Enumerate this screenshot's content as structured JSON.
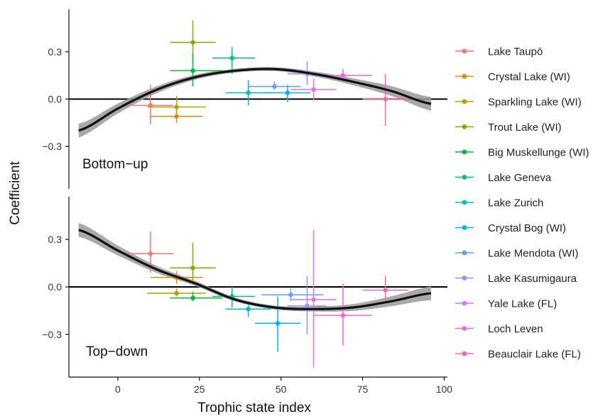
{
  "chart_data": {
    "type": "scatter",
    "xlabel": "Trophic state index",
    "ylabel": "Coefficient",
    "xlim": [
      -15,
      101
    ],
    "ylim": [
      -0.57,
      0.57
    ],
    "x_ticks": [
      0,
      25,
      50,
      75,
      100
    ],
    "x_tick_labels": [
      "0",
      "25",
      "50",
      "75",
      "100"
    ],
    "y_ticks": [
      -0.3,
      0.0,
      0.3
    ],
    "y_tick_labels": [
      "−0.3",
      "0.0",
      "0.3"
    ],
    "grid": false,
    "legend_position": "right",
    "legend": [
      {
        "name": "Lake Taupō",
        "color": "#F8766D"
      },
      {
        "name": "Crystal Lake (WI)",
        "color": "#DE8C00"
      },
      {
        "name": "Sparkling Lake (WI)",
        "color": "#B79F00"
      },
      {
        "name": "Trout Lake (WI)",
        "color": "#7CAE00"
      },
      {
        "name": "Big Muskellunge (WI)",
        "color": "#00BA38"
      },
      {
        "name": "Lake Geneva",
        "color": "#00C08B"
      },
      {
        "name": "Lake Zurich",
        "color": "#00BFC4"
      },
      {
        "name": "Crystal Bog (WI)",
        "color": "#00B4F0"
      },
      {
        "name": "Lake Mendota (WI)",
        "color": "#619CFF"
      },
      {
        "name": "Lake Kasumigaura",
        "color": "#9B8CFF"
      },
      {
        "name": "Yale Lake (FL)",
        "color": "#DB72FB"
      },
      {
        "name": "Loch Leven",
        "color": "#F564E3"
      },
      {
        "name": "Beauclair Lake (FL)",
        "color": "#FF64B0"
      }
    ],
    "panels": [
      {
        "label": "Bottom−up",
        "points": [
          {
            "lake": "Lake Taupō",
            "x": 10,
            "y": -0.04,
            "xmin": 3,
            "xmax": 17,
            "ymin": -0.16,
            "ymax": 0.09
          },
          {
            "lake": "Crystal Lake (WI)",
            "x": 18,
            "y": -0.11,
            "xmin": 10,
            "xmax": 26,
            "ymin": -0.15,
            "ymax": -0.06
          },
          {
            "lake": "Sparkling Lake (WI)",
            "x": 18,
            "y": -0.05,
            "xmin": 9,
            "xmax": 27,
            "ymin": -0.1,
            "ymax": 0.02
          },
          {
            "lake": "Trout Lake (WI)",
            "x": 23,
            "y": 0.36,
            "xmin": 16,
            "xmax": 30,
            "ymin": 0.25,
            "ymax": 0.5
          },
          {
            "lake": "Big Muskellunge (WI)",
            "x": 23,
            "y": 0.18,
            "xmin": 16,
            "xmax": 32,
            "ymin": 0.08,
            "ymax": 0.29
          },
          {
            "lake": "Lake Geneva",
            "x": 35,
            "y": 0.26,
            "xmin": 29,
            "xmax": 42,
            "ymin": 0.16,
            "ymax": 0.33
          },
          {
            "lake": "Lake Zurich",
            "x": 40,
            "y": 0.04,
            "xmin": 33,
            "xmax": 47,
            "ymin": -0.04,
            "ymax": 0.12
          },
          {
            "lake": "Crystal Bog (WI)",
            "x": 52,
            "y": 0.04,
            "xmin": 45,
            "xmax": 59,
            "ymin": -0.02,
            "ymax": 0.09
          },
          {
            "lake": "Lake Mendota (WI)",
            "x": 48,
            "y": 0.08,
            "xmin": 40,
            "xmax": 56,
            "ymin": 0.06,
            "ymax": 0.11
          },
          {
            "lake": "Lake Kasumigaura",
            "x": 58,
            "y": 0.16,
            "xmin": 52,
            "xmax": 64,
            "ymin": 0.09,
            "ymax": 0.24
          },
          {
            "lake": "Yale Lake (FL)",
            "x": 60,
            "y": 0.06,
            "xmin": 53,
            "xmax": 67,
            "ymin": -0.01,
            "ymax": 0.13
          },
          {
            "lake": "Loch Leven",
            "x": 69,
            "y": 0.15,
            "xmin": 60,
            "xmax": 78,
            "ymin": 0.11,
            "ymax": 0.19
          },
          {
            "lake": "Beauclair Lake (FL)",
            "x": 82,
            "y": 0.0,
            "xmin": 75,
            "xmax": 89,
            "ymin": -0.17,
            "ymax": 0.16
          }
        ],
        "fit": {
          "x": [
            -12,
            0,
            12,
            24,
            36,
            48,
            60,
            72,
            84,
            96
          ],
          "y": [
            -0.2,
            -0.06,
            0.06,
            0.14,
            0.18,
            0.19,
            0.16,
            0.11,
            0.05,
            -0.03
          ]
        }
      },
      {
        "label": "Top−down",
        "points": [
          {
            "lake": "Lake Taupō",
            "x": 10,
            "y": 0.21,
            "xmin": 3,
            "xmax": 17,
            "ymin": 0.09,
            "ymax": 0.35
          },
          {
            "lake": "Crystal Lake (WI)",
            "x": 18,
            "y": 0.06,
            "xmin": 10,
            "xmax": 26,
            "ymin": 0.02,
            "ymax": 0.1
          },
          {
            "lake": "Sparkling Lake (WI)",
            "x": 18,
            "y": -0.04,
            "xmin": 9,
            "xmax": 27,
            "ymin": -0.06,
            "ymax": -0.01
          },
          {
            "lake": "Trout Lake (WI)",
            "x": 23,
            "y": 0.12,
            "xmin": 16,
            "xmax": 30,
            "ymin": 0.04,
            "ymax": 0.28
          },
          {
            "lake": "Big Muskellunge (WI)",
            "x": 23,
            "y": -0.07,
            "xmin": 16,
            "xmax": 32,
            "ymin": -0.09,
            "ymax": -0.03
          },
          {
            "lake": "Lake Geneva",
            "x": 35,
            "y": -0.06,
            "xmin": 29,
            "xmax": 42,
            "ymin": -0.13,
            "ymax": 0.0
          },
          {
            "lake": "Lake Zurich",
            "x": 40,
            "y": -0.14,
            "xmin": 33,
            "xmax": 47,
            "ymin": -0.19,
            "ymax": -0.09
          },
          {
            "lake": "Crystal Bog (WI)",
            "x": 49,
            "y": -0.23,
            "xmin": 42,
            "xmax": 56,
            "ymin": -0.41,
            "ymax": -0.06
          },
          {
            "lake": "Lake Mendota (WI)",
            "x": 53,
            "y": -0.05,
            "xmin": 44,
            "xmax": 63,
            "ymin": -0.09,
            "ymax": -0.01
          },
          {
            "lake": "Lake Kasumigaura",
            "x": 58,
            "y": -0.12,
            "xmin": 52,
            "xmax": 64,
            "ymin": -0.3,
            "ymax": 0.07
          },
          {
            "lake": "Yale Lake (FL)",
            "x": 60,
            "y": -0.08,
            "xmin": 53,
            "xmax": 67,
            "ymin": -0.51,
            "ymax": 0.36
          },
          {
            "lake": "Loch Leven",
            "x": 69,
            "y": -0.18,
            "xmin": 60,
            "xmax": 78,
            "ymin": -0.37,
            "ymax": 0.02
          },
          {
            "lake": "Beauclair Lake (FL)",
            "x": 82,
            "y": -0.02,
            "xmin": 75,
            "xmax": 89,
            "ymin": -0.09,
            "ymax": 0.07
          }
        ],
        "fit": {
          "x": [
            -12,
            0,
            12,
            24,
            36,
            48,
            60,
            72,
            84,
            96
          ],
          "y": [
            0.36,
            0.23,
            0.11,
            0.02,
            -0.08,
            -0.13,
            -0.14,
            -0.13,
            -0.09,
            -0.04
          ]
        }
      }
    ]
  }
}
